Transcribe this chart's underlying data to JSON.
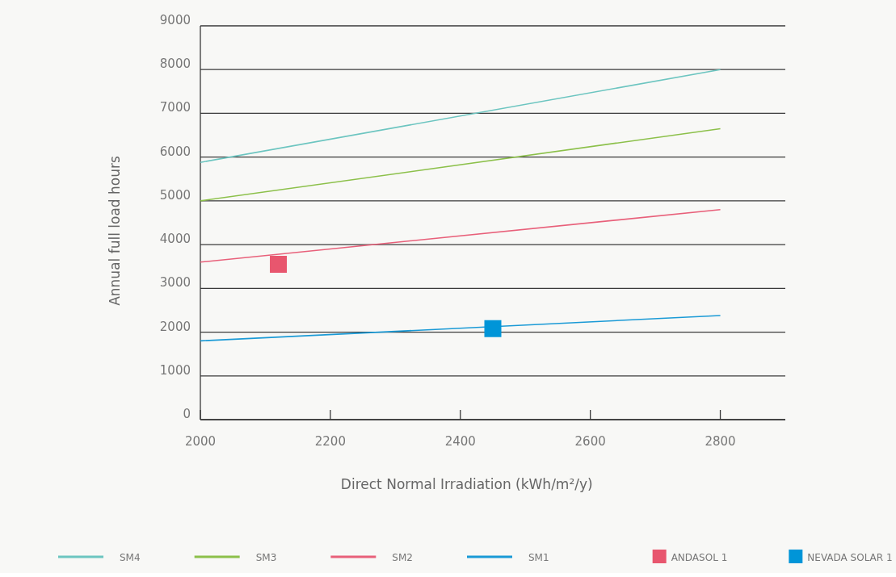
{
  "chart_data": {
    "type": "line",
    "xlabel": "Direct Normal Irradiation (kWh/m²/y)",
    "ylabel": "Annual full load hours",
    "xlim": [
      2000,
      2900
    ],
    "xticks": [
      2000,
      2200,
      2400,
      2600,
      2800
    ],
    "ylim": [
      0,
      9000
    ],
    "yticks": [
      0,
      1000,
      2000,
      3000,
      4000,
      5000,
      6000,
      7000,
      8000,
      9000
    ],
    "grid": "y",
    "legend": "bottom",
    "series": [
      {
        "name": "SM4",
        "color": "#6cc5c0",
        "x": [
          2000,
          2800
        ],
        "values": [
          5880,
          8000
        ]
      },
      {
        "name": "SM3",
        "color": "#8cc04a",
        "x": [
          2000,
          2800
        ],
        "values": [
          5000,
          6650
        ]
      },
      {
        "name": "SM2",
        "color": "#e8607a",
        "x": [
          2000,
          2800
        ],
        "values": [
          3600,
          4800
        ]
      },
      {
        "name": "SM1",
        "color": "#1a9ad6",
        "x": [
          2000,
          2800
        ],
        "values": [
          1800,
          2380
        ]
      },
      {
        "name": "ANDASOL 1",
        "type": "scatter",
        "marker": "square",
        "color": "#e8566e",
        "x": [
          2120
        ],
        "values": [
          3550
        ]
      },
      {
        "name": "NEVADA SOLAR 1",
        "type": "scatter",
        "marker": "square",
        "color": "#0095d8",
        "x": [
          2450
        ],
        "values": [
          2080
        ]
      }
    ]
  }
}
